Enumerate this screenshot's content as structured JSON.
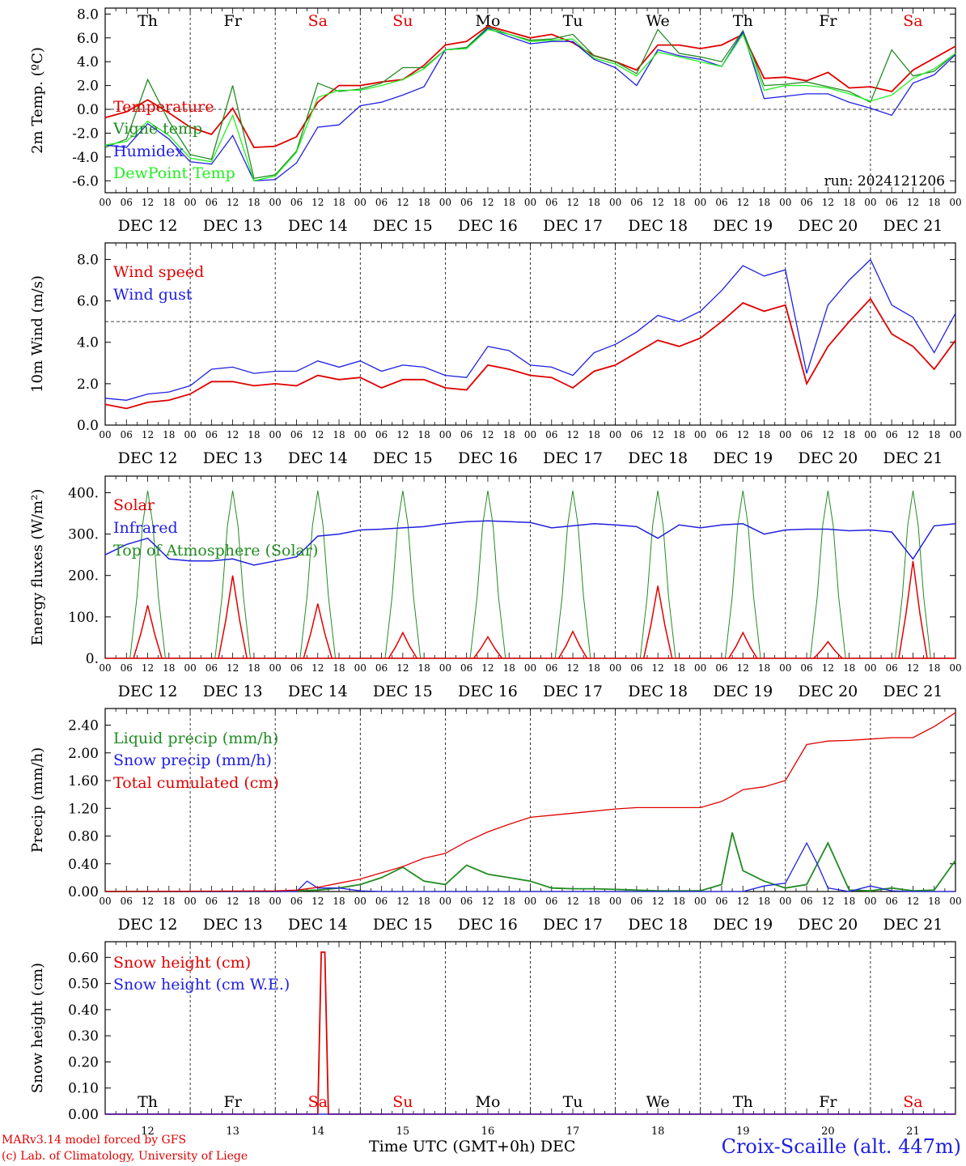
{
  "run_label": "run: 2024121206",
  "footer": {
    "model_line": "MARv3.14 model forced by GFS",
    "copyright_line": "(c) Lab. of Climatology, University of Liege",
    "time_axis_label": "Time UTC (GMT+0h) DEC",
    "station": "Croix-Scaille (alt. 447m)"
  },
  "shared_axis": {
    "hour_ticks": [
      "00",
      "06",
      "12",
      "18"
    ],
    "days": [
      "DEC 12",
      "DEC 13",
      "DEC 14",
      "DEC 15",
      "DEC 16",
      "DEC 17",
      "DEC 18",
      "DEC 19",
      "DEC 20",
      "DEC 21"
    ],
    "day_numbers": [
      "12",
      "13",
      "14",
      "15",
      "16",
      "17",
      "18",
      "19",
      "20",
      "21"
    ],
    "weekdays": [
      "Th",
      "Fr",
      "Sa",
      "Su",
      "Mo",
      "Tu",
      "We",
      "Th",
      "Fr",
      "Sa"
    ],
    "weekend_indices": [
      2,
      3,
      9
    ],
    "weekend_color": "#e00000"
  },
  "chart_data": [
    {
      "type": "line",
      "ylabel": "2m Temp. (ºC)",
      "ylim": [
        -7,
        8.5
      ],
      "yticks": [
        "8.0",
        "6.0",
        "4.0",
        "2.0",
        "0.0",
        "-2.0",
        "-4.0",
        "-6.0"
      ],
      "reference_line": 0,
      "x_unit": "hours since DEC 12 00 UTC",
      "series": [
        {
          "name": "Temperature",
          "color": "#e00000",
          "x": [
            0,
            6,
            12,
            18,
            24,
            30,
            36,
            42,
            48,
            54,
            60,
            66,
            72,
            78,
            84,
            90,
            96,
            102,
            108,
            114,
            120,
            126,
            132,
            138,
            144,
            150,
            156,
            162,
            168,
            174,
            180,
            186,
            192,
            198,
            204,
            210,
            216,
            222,
            228,
            234,
            240
          ],
          "values": [
            -0.7,
            -0.2,
            0.8,
            -0.3,
            -1.5,
            -2.1,
            0.1,
            -3.2,
            -3.1,
            -2.3,
            0.6,
            2.0,
            2.0,
            2.3,
            2.5,
            3.7,
            5.4,
            5.7,
            7.0,
            6.5,
            6.0,
            6.3,
            5.6,
            4.5,
            4.0,
            3.3,
            5.4,
            5.4,
            5.1,
            5.4,
            6.3,
            2.6,
            2.7,
            2.4,
            3.1,
            1.8,
            1.9,
            1.5,
            3.3,
            4.3,
            5.3
          ]
        },
        {
          "name": "Vigne temp",
          "color": "#228b22",
          "x": [
            0,
            6,
            12,
            18,
            24,
            30,
            36,
            42,
            48,
            54,
            60,
            66,
            72,
            78,
            84,
            90,
            96,
            102,
            108,
            114,
            120,
            126,
            132,
            138,
            144,
            150,
            156,
            162,
            168,
            174,
            180,
            186,
            192,
            198,
            204,
            210,
            216,
            222,
            228,
            234,
            240
          ],
          "values": [
            -3.2,
            -2.5,
            2.5,
            -1.0,
            -3.8,
            -4.2,
            2.0,
            -5.8,
            -5.5,
            -3.5,
            2.2,
            1.5,
            1.7,
            2.2,
            3.5,
            3.5,
            5.0,
            5.2,
            6.9,
            6.3,
            5.8,
            5.9,
            6.3,
            4.5,
            4.0,
            3.0,
            6.7,
            4.7,
            4.4,
            4.0,
            6.6,
            2.0,
            2.1,
            2.3,
            1.9,
            1.5,
            0.6,
            5.0,
            2.8,
            3.2,
            4.7
          ]
        },
        {
          "name": "Humidex",
          "color": "#2020e0",
          "x": [
            0,
            6,
            12,
            18,
            24,
            30,
            36,
            42,
            48,
            54,
            60,
            66,
            72,
            78,
            84,
            90,
            96,
            102,
            108,
            114,
            120,
            126,
            132,
            138,
            144,
            150,
            156,
            162,
            168,
            174,
            180,
            186,
            192,
            198,
            204,
            210,
            216,
            222,
            228,
            234,
            240
          ],
          "values": [
            -3.0,
            -3.2,
            -1.2,
            -2.5,
            -4.4,
            -4.6,
            -2.2,
            -6.0,
            -5.9,
            -4.5,
            -1.5,
            -1.3,
            0.3,
            0.6,
            1.2,
            1.9,
            5.0,
            5.1,
            6.8,
            6.1,
            5.5,
            5.7,
            5.7,
            4.2,
            3.5,
            2.0,
            5.0,
            4.5,
            4.2,
            3.6,
            6.5,
            0.9,
            1.1,
            1.3,
            1.3,
            0.6,
            0.1,
            -0.5,
            2.2,
            2.9,
            4.6
          ]
        },
        {
          "name": "DewPoint Temp",
          "color": "#22ee22",
          "x": [
            0,
            6,
            12,
            18,
            24,
            30,
            36,
            42,
            48,
            54,
            60,
            66,
            72,
            78,
            84,
            90,
            96,
            102,
            108,
            114,
            120,
            126,
            132,
            138,
            144,
            150,
            156,
            162,
            168,
            174,
            180,
            186,
            192,
            198,
            204,
            210,
            216,
            222,
            228,
            234,
            240
          ],
          "values": [
            -3.0,
            -2.7,
            -1.0,
            -2.2,
            -4.1,
            -4.4,
            -0.5,
            -6.0,
            -5.6,
            -3.6,
            1.0,
            1.6,
            1.6,
            2.0,
            2.5,
            3.4,
            5.0,
            5.1,
            6.7,
            6.3,
            5.7,
            5.8,
            5.9,
            4.3,
            3.8,
            2.8,
            4.8,
            4.4,
            4.0,
            3.6,
            6.3,
            1.6,
            2.0,
            2.0,
            1.8,
            1.3,
            0.7,
            1.2,
            2.6,
            3.4,
            4.7
          ]
        }
      ]
    },
    {
      "type": "line",
      "ylabel": "10m Wind (m/s)",
      "ylim": [
        0,
        8.8
      ],
      "yticks": [
        "8.0",
        "6.0",
        "4.0",
        "2.0",
        "0.0"
      ],
      "reference_line": 5,
      "x_unit": "hours since DEC 12 00 UTC",
      "series": [
        {
          "name": "Wind speed",
          "color": "#e00000",
          "x": [
            0,
            6,
            12,
            18,
            24,
            30,
            36,
            42,
            48,
            54,
            60,
            66,
            72,
            78,
            84,
            90,
            96,
            102,
            108,
            114,
            120,
            126,
            132,
            138,
            144,
            150,
            156,
            162,
            168,
            174,
            180,
            186,
            192,
            198,
            204,
            210,
            216,
            222,
            228,
            234,
            240
          ],
          "values": [
            1.0,
            0.8,
            1.1,
            1.2,
            1.5,
            2.1,
            2.1,
            1.9,
            2.0,
            1.9,
            2.4,
            2.2,
            2.3,
            1.8,
            2.2,
            2.2,
            1.8,
            1.7,
            2.9,
            2.7,
            2.4,
            2.3,
            1.8,
            2.6,
            2.9,
            3.5,
            4.1,
            3.8,
            4.2,
            5.0,
            5.9,
            5.5,
            5.8,
            2.0,
            3.8,
            5.0,
            6.1,
            4.4,
            3.8,
            2.7,
            4.1
          ]
        },
        {
          "name": "Wind gust",
          "color": "#2020e0",
          "x": [
            0,
            6,
            12,
            18,
            24,
            30,
            36,
            42,
            48,
            54,
            60,
            66,
            72,
            78,
            84,
            90,
            96,
            102,
            108,
            114,
            120,
            126,
            132,
            138,
            144,
            150,
            156,
            162,
            168,
            174,
            180,
            186,
            192,
            198,
            204,
            210,
            216,
            222,
            228,
            234,
            240
          ],
          "values": [
            1.3,
            1.2,
            1.5,
            1.6,
            1.9,
            2.7,
            2.8,
            2.5,
            2.6,
            2.6,
            3.1,
            2.8,
            3.1,
            2.6,
            2.9,
            2.8,
            2.4,
            2.3,
            3.8,
            3.6,
            2.9,
            2.8,
            2.4,
            3.5,
            3.9,
            4.5,
            5.3,
            5.0,
            5.5,
            6.5,
            7.7,
            7.2,
            7.5,
            2.5,
            5.8,
            7.0,
            8.0,
            5.8,
            5.2,
            3.5,
            5.4
          ]
        }
      ]
    },
    {
      "type": "line",
      "ylabel": "Energy fluxes (W/m²)",
      "ylim": [
        0,
        440
      ],
      "yticks": [
        "400.",
        "300.",
        "200.",
        "100.",
        "0."
      ],
      "x_unit": "hours since DEC 12 00 UTC",
      "solar_peaks": [
        128,
        200,
        132,
        62,
        52,
        65,
        175,
        62,
        40,
        235
      ],
      "toa_peak": 405,
      "series": [
        {
          "name": "Solar",
          "color": "#e00000"
        },
        {
          "name": "Infrared",
          "color": "#2020e0",
          "x": [
            0,
            6,
            12,
            18,
            24,
            30,
            36,
            42,
            48,
            54,
            60,
            66,
            72,
            78,
            84,
            90,
            96,
            102,
            108,
            114,
            120,
            126,
            132,
            138,
            144,
            150,
            156,
            162,
            168,
            174,
            180,
            186,
            192,
            198,
            204,
            210,
            216,
            222,
            228,
            234,
            240
          ],
          "values": [
            250,
            275,
            290,
            240,
            235,
            235,
            240,
            225,
            235,
            245,
            295,
            300,
            310,
            312,
            315,
            318,
            325,
            330,
            332,
            330,
            328,
            315,
            320,
            325,
            322,
            318,
            290,
            322,
            315,
            322,
            325,
            300,
            310,
            312,
            312,
            308,
            310,
            305,
            240,
            320,
            325
          ]
        },
        {
          "name": "Top of Atmosphere (Solar)",
          "color": "#228b22"
        }
      ]
    },
    {
      "type": "line",
      "ylabel": "Precip (mm/h)",
      "ylim": [
        0,
        2.64
      ],
      "yticks": [
        "2.40",
        "2.00",
        "1.60",
        "1.20",
        "0.80",
        "0.40",
        "0.00"
      ],
      "x_unit": "hours since DEC 12 00 UTC",
      "series": [
        {
          "name": "Liquid precip (mm/h)",
          "color": "#228b22",
          "x": [
            0,
            48,
            54,
            60,
            66,
            72,
            78,
            84,
            90,
            96,
            102,
            108,
            114,
            120,
            126,
            132,
            138,
            144,
            150,
            156,
            162,
            168,
            174,
            177,
            180,
            186,
            192,
            198,
            204,
            210,
            216,
            222,
            228,
            234,
            240
          ],
          "values": [
            0,
            0,
            0.01,
            0.02,
            0.05,
            0.1,
            0.2,
            0.35,
            0.15,
            0.1,
            0.38,
            0.25,
            0.2,
            0.15,
            0.05,
            0.04,
            0.04,
            0.03,
            0.02,
            0.01,
            0.01,
            0.01,
            0.1,
            0.85,
            0.3,
            0.15,
            0.05,
            0.1,
            0.7,
            0.02,
            0.01,
            0.05,
            0.01,
            0.02,
            0.45
          ]
        },
        {
          "name": "Snow precip (mm/h)",
          "color": "#2020e0",
          "x": [
            0,
            54,
            57,
            60,
            66,
            72,
            78,
            84,
            96,
            168,
            180,
            186,
            192,
            198,
            201,
            204,
            210,
            216,
            222,
            228,
            234,
            240
          ],
          "values": [
            0,
            0,
            0.15,
            0.05,
            0.05,
            0.01,
            0,
            0,
            0,
            0,
            0,
            0.08,
            0.12,
            0.7,
            0.4,
            0.05,
            0,
            0.08,
            0.01,
            0,
            0,
            0
          ]
        },
        {
          "name": "Total cumulated (cm)",
          "color": "#e00000",
          "x": [
            0,
            48,
            54,
            60,
            66,
            72,
            78,
            84,
            90,
            96,
            102,
            108,
            114,
            120,
            126,
            132,
            138,
            144,
            150,
            156,
            162,
            168,
            174,
            177,
            180,
            186,
            192,
            198,
            204,
            210,
            216,
            222,
            228,
            234,
            240
          ],
          "values": [
            0,
            0.01,
            0.02,
            0.06,
            0.12,
            0.18,
            0.27,
            0.36,
            0.48,
            0.55,
            0.72,
            0.86,
            0.97,
            1.07,
            1.1,
            1.13,
            1.16,
            1.19,
            1.21,
            1.21,
            1.21,
            1.21,
            1.3,
            1.38,
            1.47,
            1.51,
            1.6,
            2.12,
            2.17,
            2.18,
            2.2,
            2.22,
            2.22,
            2.38,
            2.58
          ]
        }
      ]
    },
    {
      "type": "line",
      "ylabel": "Snow height (cm)",
      "ylim": [
        0,
        0.66
      ],
      "yticks": [
        "0.60",
        "0.50",
        "0.40",
        "0.30",
        "0.20",
        "0.10",
        "0.00"
      ],
      "x_unit": "hours since DEC 12 00 UTC",
      "series": [
        {
          "name": "Snow height (cm)",
          "color": "#e00000",
          "x": [
            0,
            60,
            61,
            62,
            63,
            240
          ],
          "values": [
            0,
            0,
            0.62,
            0.62,
            0,
            0
          ]
        },
        {
          "name": "Snow height (cm W.E.)",
          "color": "#2020e0",
          "x": [
            0,
            240
          ],
          "values": [
            0,
            0
          ]
        }
      ]
    }
  ]
}
